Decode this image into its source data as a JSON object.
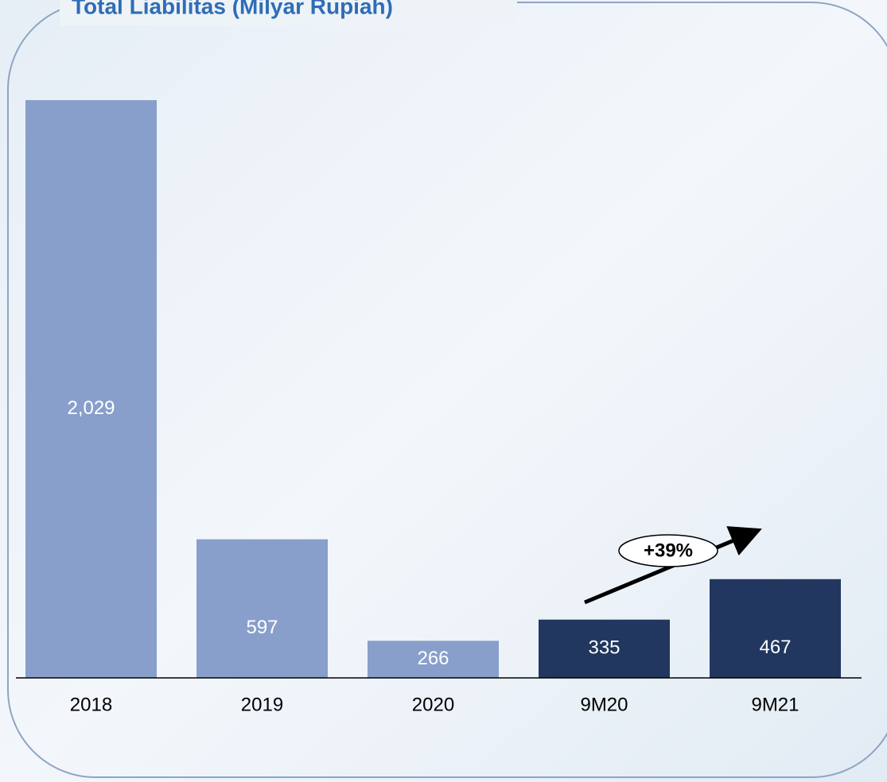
{
  "chart_data": {
    "type": "bar",
    "title": "Total Liabilitas (Milyar Rupiah)",
    "categories": [
      "2018",
      "2019",
      "2020",
      "9M20",
      "9M21"
    ],
    "values": [
      2029,
      597,
      266,
      335,
      467
    ],
    "value_labels": [
      "2,029",
      "597",
      "266",
      "335",
      "467"
    ],
    "colors": [
      "#889fcb",
      "#889fcb",
      "#889fcb",
      "#22375f",
      "#22375f"
    ],
    "ylim": [
      145,
      2200
    ],
    "annotation": "+39%"
  }
}
